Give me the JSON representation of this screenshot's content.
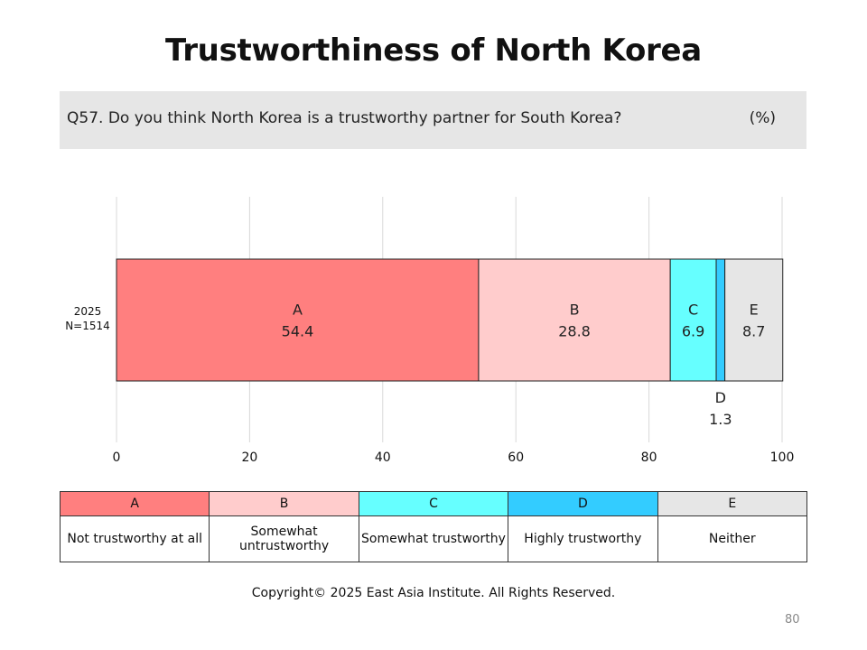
{
  "page": {
    "title": "Trustworthiness of North Korea",
    "question": "Q57. Do you think North Korea is a trustworthy partner for South Korea?",
    "unit": "(%)",
    "copyright": "Copyright© 2025 East Asia Institute. All Rights Reserved.",
    "page_number": "80"
  },
  "chart_data": {
    "type": "bar",
    "orientation": "horizontal",
    "stacked": true,
    "title": "Trustworthiness of North Korea",
    "xlim": [
      0,
      100
    ],
    "xticks": [
      "0",
      "20",
      "40",
      "60",
      "80",
      "100"
    ],
    "grid": true,
    "categories": [
      "2025\nN=1514"
    ],
    "category_lines": [
      "2025",
      "N=1514"
    ],
    "series": [
      {
        "name": "A",
        "values": [
          54.4
        ],
        "color": "#ff7f7f"
      },
      {
        "name": "B",
        "values": [
          28.8
        ],
        "color": "#ffcccc"
      },
      {
        "name": "C",
        "values": [
          6.9
        ],
        "color": "#66ffff"
      },
      {
        "name": "D",
        "values": [
          1.3
        ],
        "color": "#33ccff"
      },
      {
        "name": "E",
        "values": [
          8.7
        ],
        "color": "#e6e6e6"
      }
    ],
    "value_labels": [
      "54.4",
      "28.8",
      "6.9",
      "1.3",
      "8.7"
    ]
  },
  "legend": {
    "keys": [
      "A",
      "B",
      "C",
      "D",
      "E"
    ],
    "descriptions": [
      "Not trustworthy at all",
      "Somewhat untrustworthy",
      "Somewhat trustworthy",
      "Highly trustworthy",
      "Neither"
    ],
    "colors": [
      "#ff7f7f",
      "#ffcccc",
      "#66ffff",
      "#33ccff",
      "#e6e6e6"
    ]
  }
}
